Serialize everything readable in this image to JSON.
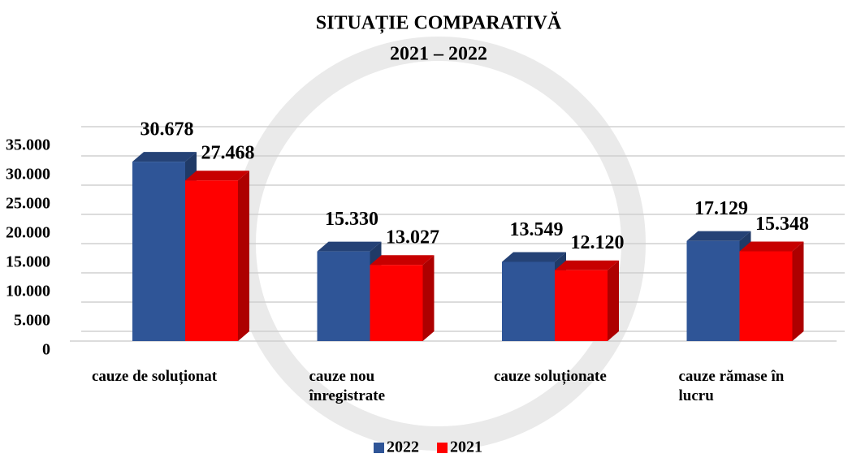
{
  "chart_data": {
    "type": "bar3d",
    "title": "SITUAȚIE COMPARATIVĂ",
    "subtitle": "2021 – 2022",
    "categories": [
      "cauze de soluționat",
      "cauze nou înregistrate",
      "cauze soluționate",
      "cauze rămase în lucru"
    ],
    "series": [
      {
        "name": "2022",
        "color": "#2f5597",
        "values": [
          30678,
          15330,
          13549,
          17129
        ],
        "value_labels": [
          "30.678",
          "15.330",
          "13.549",
          "17.129"
        ]
      },
      {
        "name": "2021",
        "color": "#ff0000",
        "values": [
          27468,
          13027,
          12120,
          15348
        ],
        "value_labels": [
          "27.468",
          "13.027",
          "12.120",
          "15.348"
        ]
      }
    ],
    "ylim": [
      0,
      35000
    ],
    "yticks": [
      0,
      {
        "value": 5000,
        "label": "5.000"
      },
      {
        "value": 10000,
        "label": "10.000"
      },
      {
        "value": 15000,
        "label": "15.000"
      },
      {
        "value": 20000,
        "label": "20.000"
      },
      {
        "value": 25000,
        "label": "25.000"
      },
      {
        "value": 30000,
        "label": "30.000"
      },
      {
        "value": 35000,
        "label": "35.000"
      }
    ],
    "grid": true,
    "legend": "bottom"
  }
}
